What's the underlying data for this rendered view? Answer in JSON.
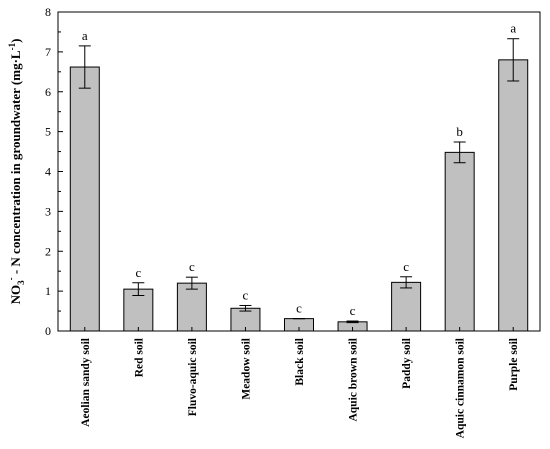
{
  "chart_data": {
    "type": "bar",
    "title": "",
    "xlabel": "",
    "ylabel": {
      "prefix": "NO",
      "sub": "3",
      "sup": "-",
      "main": " - N concentration in groundwater (mg·L",
      "unit_sup": "-1",
      "suffix": ")"
    },
    "ylim": [
      0,
      8
    ],
    "yticks": [
      0,
      1,
      2,
      3,
      4,
      5,
      6,
      7,
      8
    ],
    "bar_color": "#c0c0c0",
    "categories": [
      "Aeolian sandy soil",
      "Red soil",
      "Fluvo-aquic soil",
      "Meadow soil",
      "Black soil",
      "Aquic brown soil",
      "Paddy soil",
      "Aquic cinnamon soil",
      "Purple soil"
    ],
    "values": [
      6.62,
      1.05,
      1.2,
      0.57,
      0.31,
      0.23,
      1.22,
      4.48,
      6.8
    ],
    "errors": [
      0.53,
      0.16,
      0.15,
      0.07,
      0.0,
      0.02,
      0.14,
      0.26,
      0.53
    ],
    "significance": [
      "a",
      "c",
      "c",
      "c",
      "c",
      "c",
      "c",
      "b",
      "a"
    ]
  }
}
